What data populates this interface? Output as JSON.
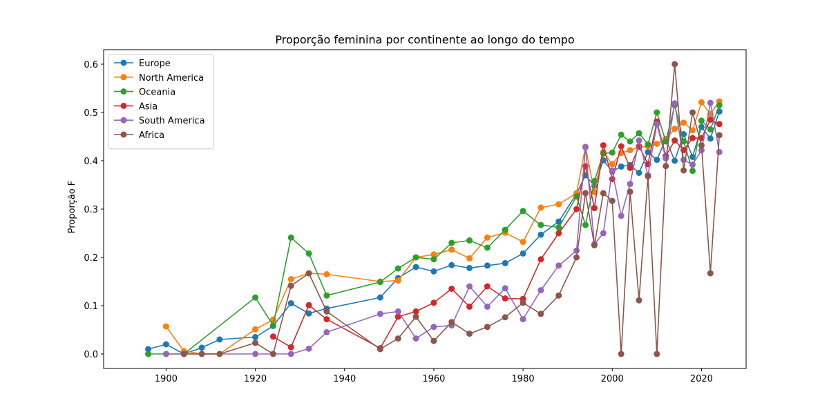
{
  "chart_data": {
    "type": "line",
    "title": "Proporção feminina por continente ao longo do tempo",
    "xlabel": "",
    "ylabel": "Proporção F",
    "xlim": [
      1886,
      2030
    ],
    "ylim": [
      -0.03,
      0.63
    ],
    "xticks": [
      1900,
      1920,
      1940,
      1960,
      1980,
      2000,
      2020
    ],
    "yticks": [
      0.0,
      0.1,
      0.2,
      0.3,
      0.4,
      0.5,
      0.6
    ],
    "grid": false,
    "legend": "upper-left",
    "series": [
      {
        "name": "Europe",
        "color": "#1f77b4",
        "points": [
          [
            1896,
            0.01
          ],
          [
            1900,
            0.02
          ],
          [
            1904,
            0.0
          ],
          [
            1908,
            0.013
          ],
          [
            1912,
            0.03
          ],
          [
            1920,
            0.035
          ],
          [
            1924,
            0.058
          ],
          [
            1928,
            0.105
          ],
          [
            1932,
            0.084
          ],
          [
            1936,
            0.094
          ],
          [
            1948,
            0.117
          ],
          [
            1952,
            0.157
          ],
          [
            1956,
            0.18
          ],
          [
            1960,
            0.171
          ],
          [
            1964,
            0.184
          ],
          [
            1968,
            0.178
          ],
          [
            1972,
            0.183
          ],
          [
            1976,
            0.188
          ],
          [
            1980,
            0.208
          ],
          [
            1984,
            0.247
          ],
          [
            1988,
            0.274
          ],
          [
            1992,
            0.332
          ],
          [
            1994,
            0.37
          ],
          [
            1996,
            0.348
          ],
          [
            1998,
            0.401
          ],
          [
            2000,
            0.378
          ],
          [
            2002,
            0.388
          ],
          [
            2004,
            0.391
          ],
          [
            2006,
            0.375
          ],
          [
            2008,
            0.418
          ],
          [
            2010,
            0.402
          ],
          [
            2012,
            0.445
          ],
          [
            2014,
            0.4
          ],
          [
            2016,
            0.455
          ],
          [
            2018,
            0.408
          ],
          [
            2020,
            0.47
          ],
          [
            2022,
            0.446
          ],
          [
            2024,
            0.502
          ]
        ]
      },
      {
        "name": "North America",
        "color": "#ff7f0e",
        "points": [
          [
            1900,
            0.057
          ],
          [
            1904,
            0.006
          ],
          [
            1908,
            0.0
          ],
          [
            1912,
            0.0
          ],
          [
            1920,
            0.051
          ],
          [
            1924,
            0.071
          ],
          [
            1928,
            0.155
          ],
          [
            1932,
            0.167
          ],
          [
            1936,
            0.165
          ],
          [
            1948,
            0.15
          ],
          [
            1952,
            0.152
          ],
          [
            1956,
            0.2
          ],
          [
            1960,
            0.206
          ],
          [
            1964,
            0.216
          ],
          [
            1968,
            0.198
          ],
          [
            1972,
            0.241
          ],
          [
            1976,
            0.251
          ],
          [
            1980,
            0.232
          ],
          [
            1984,
            0.303
          ],
          [
            1988,
            0.31
          ],
          [
            1992,
            0.333
          ],
          [
            1994,
            0.429
          ],
          [
            1996,
            0.335
          ],
          [
            1998,
            0.418
          ],
          [
            2000,
            0.393
          ],
          [
            2002,
            0.416
          ],
          [
            2004,
            0.422
          ],
          [
            2006,
            0.428
          ],
          [
            2008,
            0.43
          ],
          [
            2010,
            0.435
          ],
          [
            2012,
            0.445
          ],
          [
            2014,
            0.466
          ],
          [
            2016,
            0.479
          ],
          [
            2018,
            0.463
          ],
          [
            2020,
            0.521
          ],
          [
            2022,
            0.497
          ],
          [
            2024,
            0.523
          ]
        ]
      },
      {
        "name": "Oceania",
        "color": "#2ca02c",
        "points": [
          [
            1896,
            0.0
          ],
          [
            1900,
            0.0
          ],
          [
            1904,
            0.0
          ],
          [
            1920,
            0.117
          ],
          [
            1924,
            0.059
          ],
          [
            1928,
            0.241
          ],
          [
            1932,
            0.208
          ],
          [
            1936,
            0.121
          ],
          [
            1948,
            0.149
          ],
          [
            1952,
            0.177
          ],
          [
            1956,
            0.2
          ],
          [
            1960,
            0.196
          ],
          [
            1964,
            0.23
          ],
          [
            1968,
            0.235
          ],
          [
            1972,
            0.22
          ],
          [
            1976,
            0.257
          ],
          [
            1980,
            0.296
          ],
          [
            1984,
            0.267
          ],
          [
            1988,
            0.262
          ],
          [
            1992,
            0.326
          ],
          [
            1994,
            0.267
          ],
          [
            1996,
            0.358
          ],
          [
            1998,
            0.415
          ],
          [
            2000,
            0.417
          ],
          [
            2002,
            0.454
          ],
          [
            2004,
            0.44
          ],
          [
            2006,
            0.457
          ],
          [
            2008,
            0.434
          ],
          [
            2010,
            0.5
          ],
          [
            2012,
            0.44
          ],
          [
            2014,
            0.515
          ],
          [
            2016,
            0.44
          ],
          [
            2018,
            0.379
          ],
          [
            2020,
            0.483
          ],
          [
            2022,
            0.465
          ],
          [
            2024,
            0.515
          ]
        ]
      },
      {
        "name": "Asia",
        "color": "#d62728",
        "points": [
          [
            1924,
            0.036
          ],
          [
            1928,
            0.014
          ],
          [
            1932,
            0.101
          ],
          [
            1936,
            0.072
          ],
          [
            1948,
            0.012
          ],
          [
            1952,
            0.077
          ],
          [
            1956,
            0.088
          ],
          [
            1960,
            0.106
          ],
          [
            1964,
            0.135
          ],
          [
            1968,
            0.098
          ],
          [
            1972,
            0.14
          ],
          [
            1976,
            0.115
          ],
          [
            1980,
            0.114
          ],
          [
            1984,
            0.196
          ],
          [
            1988,
            0.25
          ],
          [
            1992,
            0.3
          ],
          [
            1994,
            0.389
          ],
          [
            1996,
            0.302
          ],
          [
            1998,
            0.432
          ],
          [
            2000,
            0.362
          ],
          [
            2002,
            0.43
          ],
          [
            2004,
            0.385
          ],
          [
            2006,
            0.43
          ],
          [
            2008,
            0.393
          ],
          [
            2010,
            0.481
          ],
          [
            2012,
            0.41
          ],
          [
            2014,
            0.442
          ],
          [
            2016,
            0.422
          ],
          [
            2018,
            0.447
          ],
          [
            2020,
            0.447
          ],
          [
            2022,
            0.485
          ],
          [
            2024,
            0.476
          ]
        ]
      },
      {
        "name": "South America",
        "color": "#9467bd",
        "points": [
          [
            1900,
            0.0
          ],
          [
            1920,
            0.0
          ],
          [
            1928,
            0.0
          ],
          [
            1932,
            0.011
          ],
          [
            1936,
            0.045
          ],
          [
            1948,
            0.083
          ],
          [
            1952,
            0.088
          ],
          [
            1956,
            0.032
          ],
          [
            1960,
            0.056
          ],
          [
            1964,
            0.059
          ],
          [
            1968,
            0.14
          ],
          [
            1972,
            0.098
          ],
          [
            1976,
            0.136
          ],
          [
            1980,
            0.072
          ],
          [
            1984,
            0.132
          ],
          [
            1988,
            0.183
          ],
          [
            1992,
            0.214
          ],
          [
            1994,
            0.428
          ],
          [
            1996,
            0.227
          ],
          [
            1998,
            0.25
          ],
          [
            2000,
            0.38
          ],
          [
            2002,
            0.286
          ],
          [
            2004,
            0.352
          ],
          [
            2006,
            0.442
          ],
          [
            2008,
            0.37
          ],
          [
            2010,
            0.476
          ],
          [
            2012,
            0.405
          ],
          [
            2014,
            0.519
          ],
          [
            2016,
            0.402
          ],
          [
            2018,
            0.392
          ],
          [
            2020,
            0.422
          ],
          [
            2022,
            0.52
          ],
          [
            2024,
            0.418
          ]
        ]
      },
      {
        "name": "Africa",
        "color": "#8c564b",
        "points": [
          [
            1904,
            0.0
          ],
          [
            1908,
            0.0
          ],
          [
            1912,
            0.0
          ],
          [
            1920,
            0.023
          ],
          [
            1924,
            0.0
          ],
          [
            1928,
            0.141
          ],
          [
            1932,
            0.167
          ],
          [
            1936,
            0.088
          ],
          [
            1948,
            0.01
          ],
          [
            1952,
            0.032
          ],
          [
            1956,
            0.077
          ],
          [
            1960,
            0.027
          ],
          [
            1964,
            0.066
          ],
          [
            1968,
            0.042
          ],
          [
            1972,
            0.056
          ],
          [
            1976,
            0.076
          ],
          [
            1980,
            0.106
          ],
          [
            1984,
            0.083
          ],
          [
            1988,
            0.121
          ],
          [
            1992,
            0.2
          ],
          [
            1994,
            0.333
          ],
          [
            1996,
            0.225
          ],
          [
            1998,
            0.333
          ],
          [
            2000,
            0.317
          ],
          [
            2002,
            0.0
          ],
          [
            2004,
            0.336
          ],
          [
            2006,
            0.111
          ],
          [
            2008,
            0.368
          ],
          [
            2010,
            0.0
          ],
          [
            2012,
            0.389
          ],
          [
            2014,
            0.6
          ],
          [
            2016,
            0.38
          ],
          [
            2018,
            0.5
          ],
          [
            2020,
            0.432
          ],
          [
            2022,
            0.167
          ],
          [
            2024,
            0.453
          ]
        ]
      }
    ]
  }
}
